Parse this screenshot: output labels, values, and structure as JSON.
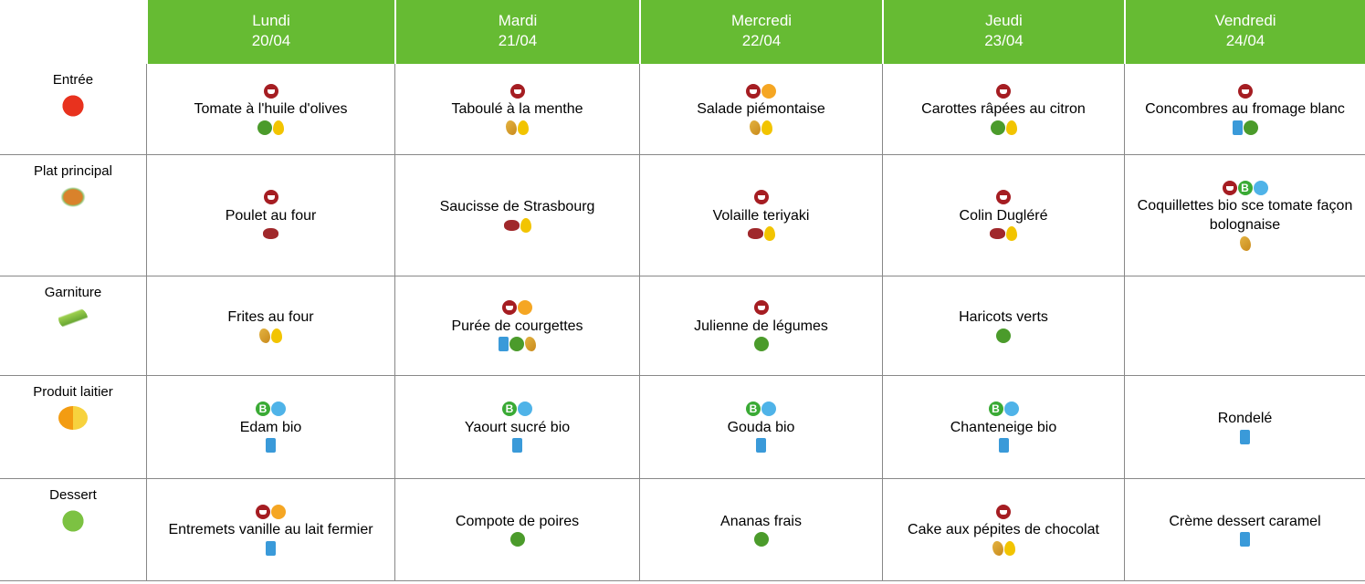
{
  "days": [
    {
      "name": "Lundi",
      "date": "20/04"
    },
    {
      "name": "Mardi",
      "date": "21/04"
    },
    {
      "name": "Mercredi",
      "date": "22/04"
    },
    {
      "name": "Jeudi",
      "date": "23/04"
    },
    {
      "name": "Vendredi",
      "date": "24/04"
    }
  ],
  "rows": [
    {
      "label": "Entrée",
      "cells": [
        "Tomate à l'huile d'olives",
        "Taboulé à la menthe",
        "Salade piémontaise",
        "Carottes râpées au citron",
        "Concombres au fromage blanc"
      ]
    },
    {
      "label": "Plat principal",
      "cells": [
        "Poulet au four",
        "Saucisse de Strasbourg",
        "Volaille teriyaki",
        "Colin Dugléré",
        "Coquillettes bio sce tomate façon bolognaise"
      ]
    },
    {
      "label": "Garniture",
      "cells": [
        "Frites au four",
        "Purée de courgettes",
        "Julienne de légumes",
        "Haricots verts",
        null
      ]
    },
    {
      "label": "Produit laitier",
      "cells": [
        "Edam bio",
        "Yaourt sucré bio",
        "Gouda bio",
        "Chanteneige bio",
        "Rondelé"
      ]
    },
    {
      "label": "Dessert",
      "cells": [
        "Entremets vanille au lait fermier",
        "Compote de poires",
        "Ananas frais",
        "Cake aux pépites de chocolat",
        "Crème dessert caramel"
      ]
    }
  ]
}
